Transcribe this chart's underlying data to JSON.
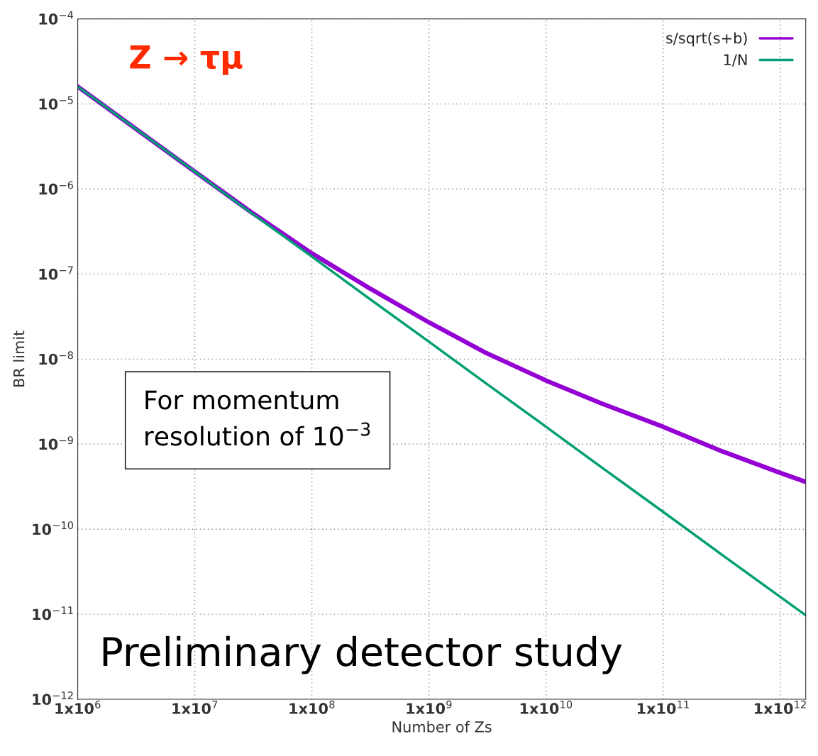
{
  "chart_data": {
    "type": "line",
    "xlabel": "Number of Zs",
    "ylabel": "BR limit",
    "log": "xy",
    "grid": true,
    "legend": "top right",
    "line_style": "solid",
    "marker": "none",
    "xlim": [
      1000000,
      1650000000000
    ],
    "ylim": [
      1e-12,
      0.0001
    ],
    "xticks": [
      {
        "value": 1000000,
        "label": "1x10$^{6}$"
      },
      {
        "value": 10000000,
        "label": "1x10$^{7}$"
      },
      {
        "value": 100000000,
        "label": "1x10$^{8}$"
      },
      {
        "value": 1000000000,
        "label": "1x10$^{9}$"
      },
      {
        "value": 10000000000,
        "label": "1x10$^{10}$"
      },
      {
        "value": 100000000000,
        "label": "1x10$^{11}$"
      },
      {
        "value": 1000000000000,
        "label": "1x10$^{12}$"
      }
    ],
    "yticks": [
      {
        "value": 1e-12,
        "label": "10$^{−12}$"
      },
      {
        "value": 1e-11,
        "label": "10$^{−11}$"
      },
      {
        "value": 1e-10,
        "label": "10$^{−10}$"
      },
      {
        "value": 1e-09,
        "label": "10$^{−9}$"
      },
      {
        "value": 1e-08,
        "label": "10$^{−8}$"
      },
      {
        "value": 1e-07,
        "label": "10$^{−7}$"
      },
      {
        "value": 1e-06,
        "label": "10$^{−6}$"
      },
      {
        "value": 1e-05,
        "label": "10$^{−5}$"
      },
      {
        "value": 0.0001,
        "label": "10$^{−4}$"
      }
    ],
    "x": [
      1000000,
      10000000,
      30000000,
      100000000,
      300000000,
      1000000000,
      3000000000,
      10000000000,
      30000000000,
      100000000000,
      300000000000,
      1000000000000,
      1650000000000
    ],
    "series": [
      {
        "name": "s/sqrt(s+b)",
        "color": "#9400d3",
        "values": [
          1.6e-05,
          1.6e-06,
          5.4e-07,
          1.75e-07,
          7e-08,
          2.7e-08,
          1.2e-08,
          5.6e-09,
          3e-09,
          1.6e-09,
          8.5e-10,
          4.6e-10,
          3.6e-10
        ]
      },
      {
        "name": "1/N",
        "color": "#009e73",
        "values": [
          1.6e-05,
          1.6e-06,
          5.3e-07,
          1.6e-07,
          5.3e-08,
          1.6e-08,
          5.3e-09,
          1.6e-09,
          5.3e-10,
          1.6e-10,
          5.3e-11,
          1.6e-11,
          9.7e-12
        ]
      }
    ],
    "annotations": [
      "Z → τμ",
      "For momentum resolution of 10$^{−3}$",
      "Preliminary detector study"
    ]
  }
}
